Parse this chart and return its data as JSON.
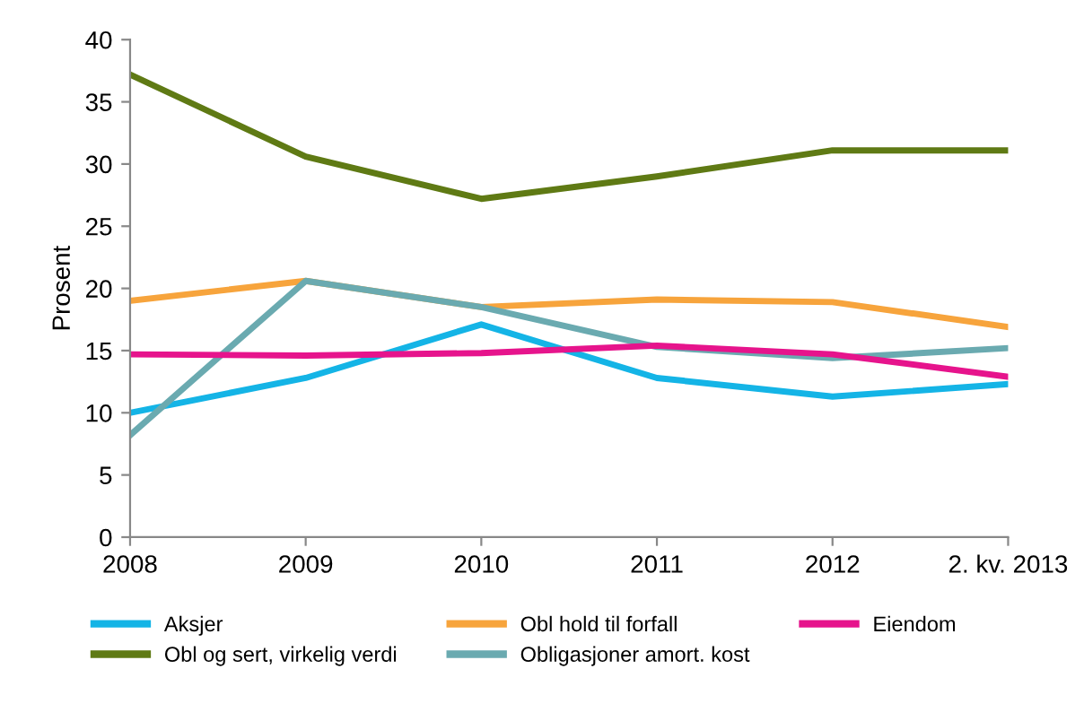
{
  "chart_data": {
    "type": "line",
    "ylabel": "Prosent",
    "categories": [
      "2008",
      "2009",
      "2010",
      "2011",
      "2012",
      "2. kv. 2013"
    ],
    "ylim": [
      0,
      40
    ],
    "yticks": [
      0,
      5,
      10,
      15,
      20,
      25,
      30,
      35,
      40
    ],
    "grid": false,
    "legend": "bottom",
    "marker": "none",
    "line_style": "solid",
    "series": [
      {
        "name": "Aksjer",
        "color": "#14b4e6",
        "values": [
          10.0,
          12.8,
          17.1,
          12.8,
          11.3,
          12.3
        ]
      },
      {
        "name": "Obl og sert, virkelig verdi",
        "color": "#5f7a14",
        "values": [
          37.2,
          30.6,
          27.2,
          29.0,
          31.1,
          31.1
        ]
      },
      {
        "name": "Obl hold til forfall",
        "color": "#f7a43c",
        "values": [
          19.0,
          20.6,
          18.5,
          19.1,
          18.9,
          16.9
        ]
      },
      {
        "name": "Obligasjoner amort. kost",
        "color": "#6aaab0",
        "values": [
          8.2,
          20.6,
          18.5,
          15.3,
          14.4,
          15.2
        ]
      },
      {
        "name": "Eiendom",
        "color": "#e6148c",
        "values": [
          14.7,
          14.6,
          14.8,
          15.4,
          14.7,
          12.9
        ]
      }
    ]
  }
}
